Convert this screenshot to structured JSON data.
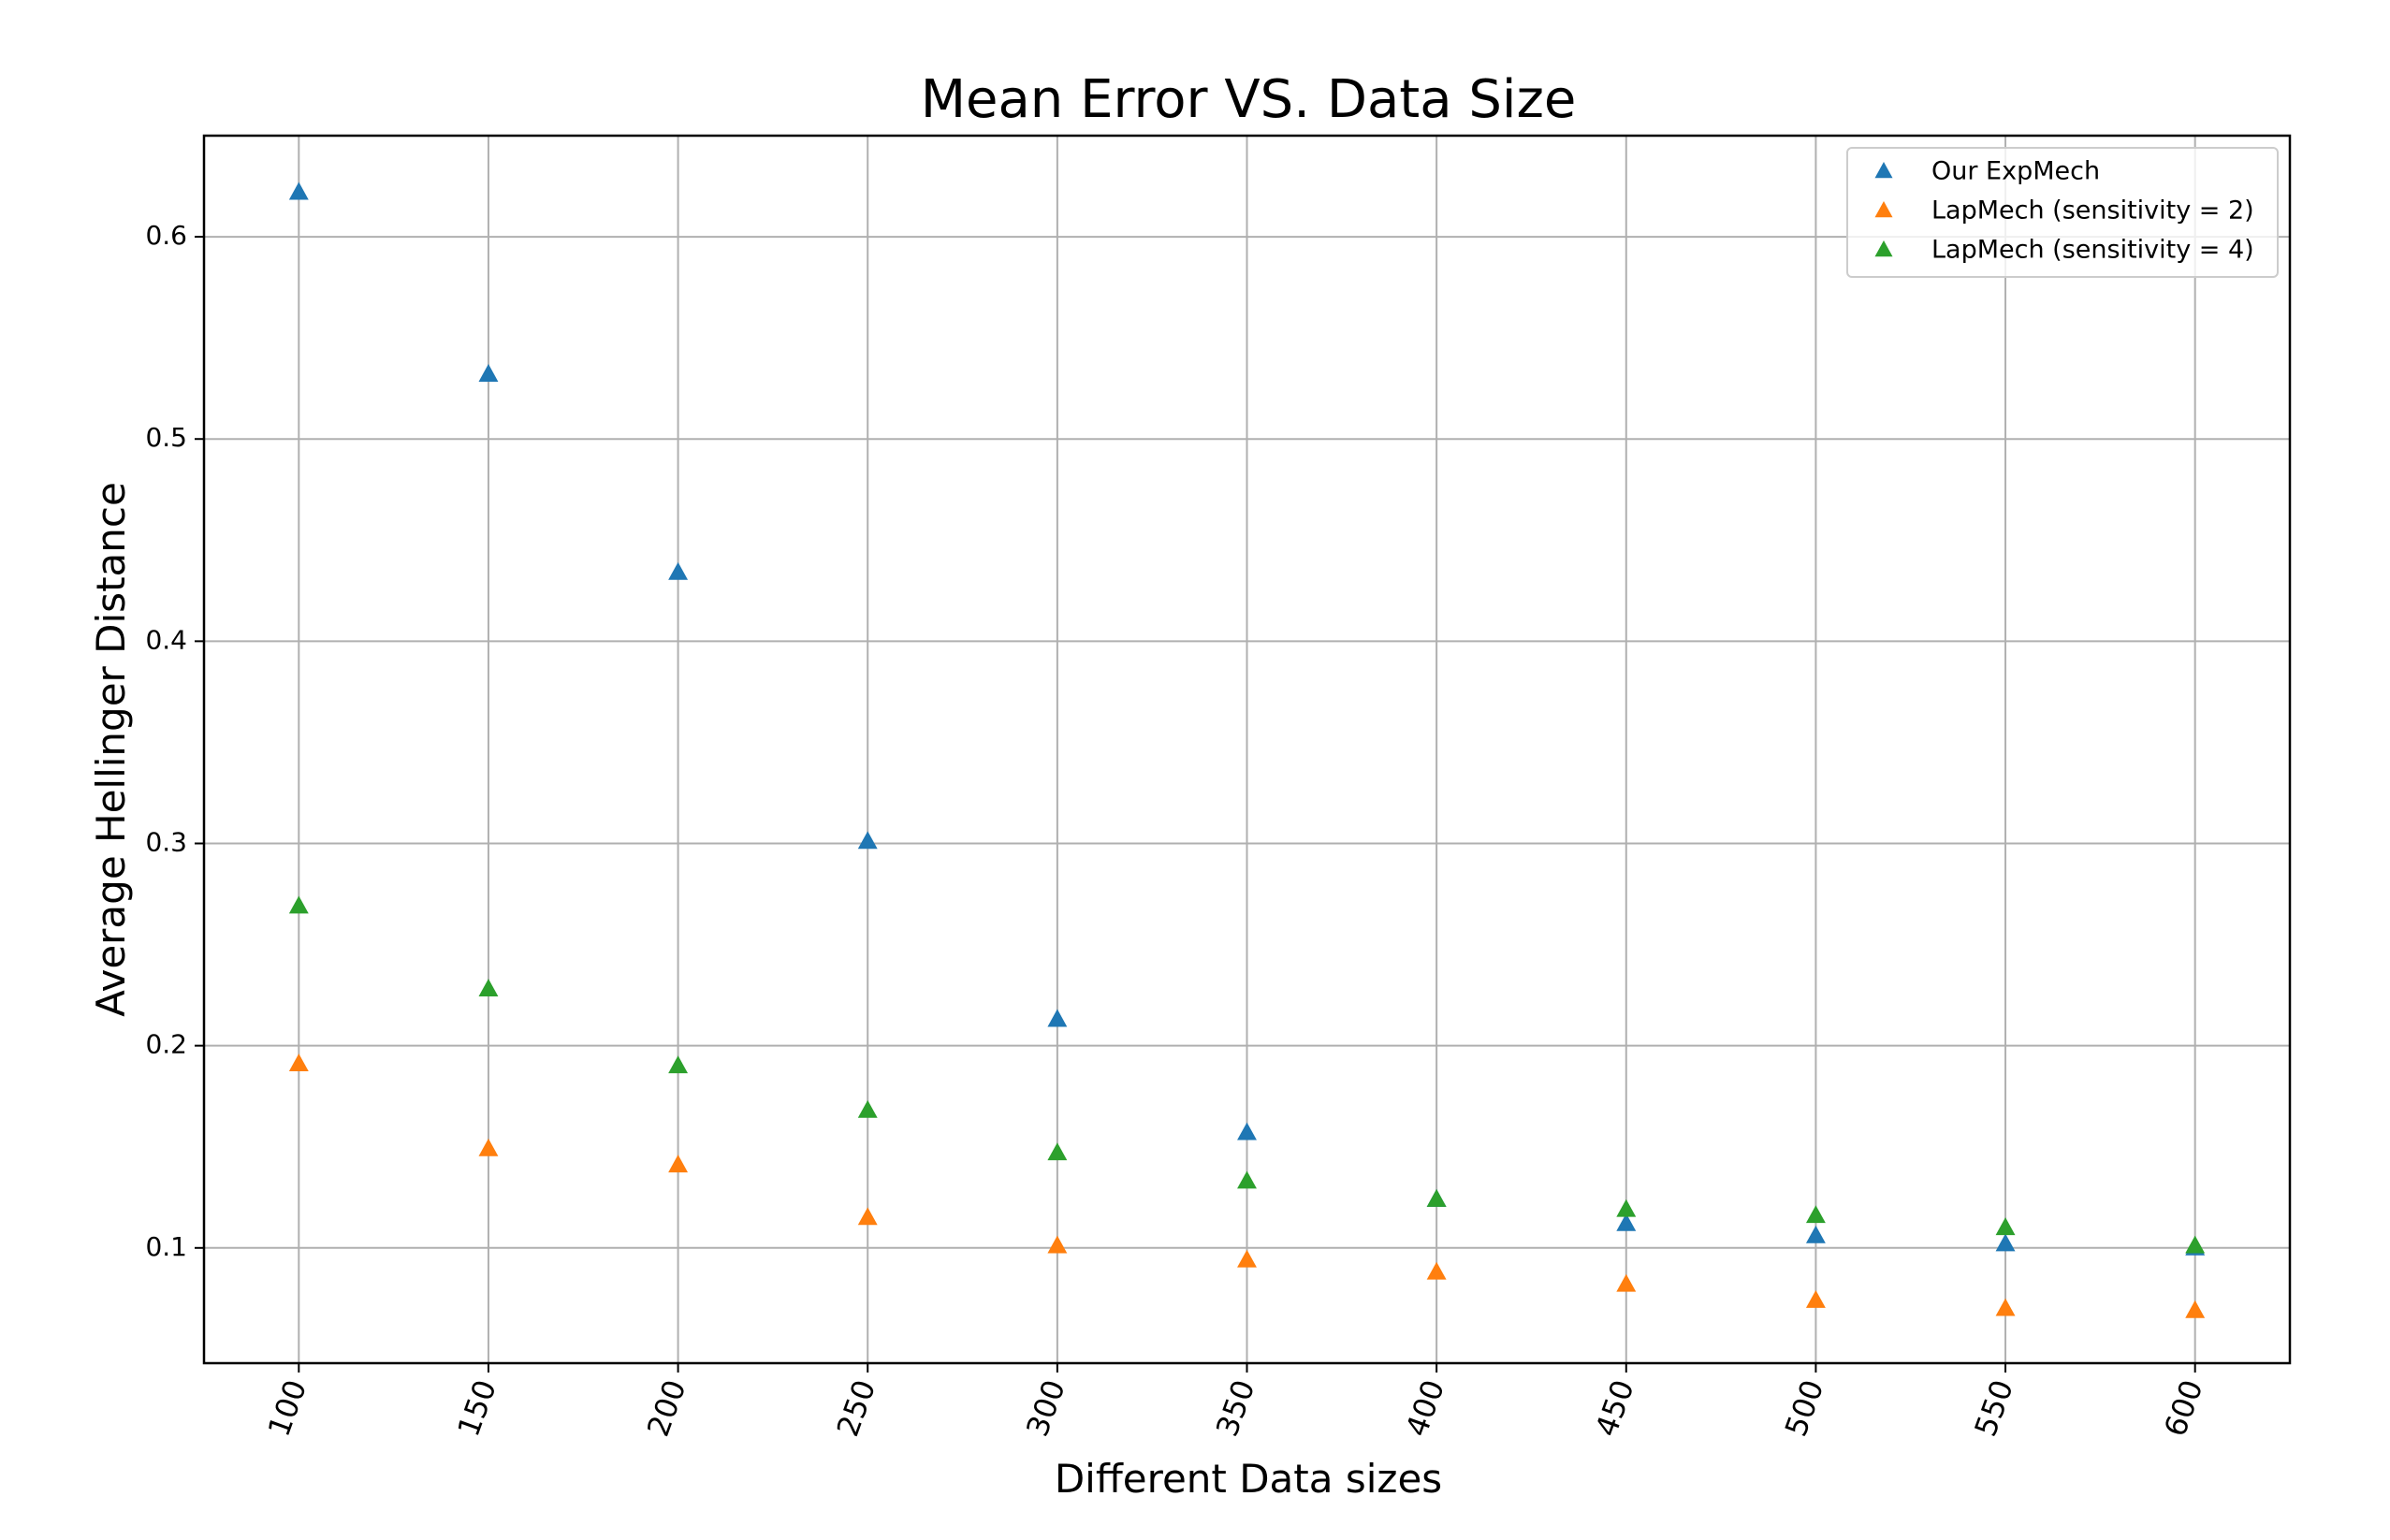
{
  "chart_data": {
    "type": "scatter",
    "title": "Mean Error VS. Data Size",
    "xlabel": "Different Data sizes",
    "ylabel": "Average Hellinger Distance",
    "x": [
      100,
      150,
      200,
      250,
      300,
      350,
      400,
      450,
      500,
      550,
      600
    ],
    "xticks": [
      "100",
      "150",
      "200",
      "250",
      "300",
      "350",
      "400",
      "450",
      "500",
      "550",
      "600"
    ],
    "yticks": [
      "0.1",
      "0.2",
      "0.3",
      "0.4",
      "0.5",
      "0.6"
    ],
    "xlim": [
      75,
      625
    ],
    "ylim": [
      0.043,
      0.65
    ],
    "grid": true,
    "legend_position": "top-right",
    "marker": "triangle-up",
    "series": [
      {
        "name": "Our ExpMech",
        "color": "#1f77b4",
        "values": [
          0.622,
          0.532,
          0.434,
          0.301,
          0.213,
          0.157,
          0.124,
          0.112,
          0.106,
          0.102,
          0.1
        ]
      },
      {
        "name": "LapMech (sensitivity = 2)",
        "color": "#ff7f0e",
        "values": [
          0.191,
          0.149,
          0.141,
          0.115,
          0.101,
          0.094,
          0.088,
          0.082,
          0.074,
          0.07,
          0.069
        ]
      },
      {
        "name": "LapMech (sensitivity = 4)",
        "color": "#2ca02c",
        "values": [
          0.269,
          0.228,
          0.19,
          0.168,
          0.147,
          0.133,
          0.124,
          0.119,
          0.116,
          0.11,
          0.101
        ]
      }
    ]
  }
}
